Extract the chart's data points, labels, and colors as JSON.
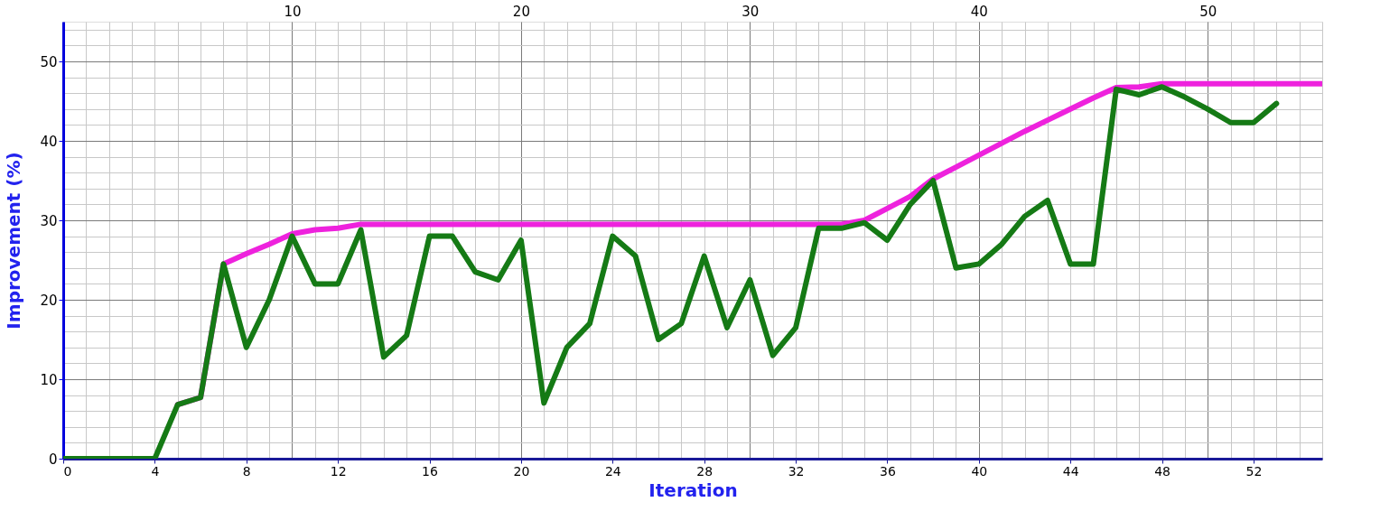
{
  "chart_data": {
    "type": "line",
    "xlabel": "Iteration",
    "ylabel": "Improvement (%)",
    "xlim": [
      0,
      55
    ],
    "ylim": [
      0,
      55
    ],
    "xticks": [
      0,
      4,
      8,
      12,
      16,
      20,
      24,
      28,
      32,
      36,
      40,
      44,
      48,
      52
    ],
    "x2lim": [
      0,
      55
    ],
    "x2ticks": [
      10,
      20,
      30,
      40,
      50
    ],
    "yticks": [
      0,
      10,
      20,
      30,
      40,
      50
    ],
    "grid": true,
    "marker": "none",
    "line_style": "solid",
    "series": [
      {
        "color": "#ee22dd",
        "x": [
          5,
          6,
          7,
          8,
          9,
          10,
          11,
          12,
          13,
          34,
          35,
          36,
          37,
          38,
          39,
          40,
          41,
          42,
          43,
          44,
          45,
          46,
          47,
          48,
          55
        ],
        "values": [
          6.8,
          7.7,
          24.5,
          25.8,
          27,
          28.3,
          28.8,
          29,
          29.5,
          29.5,
          30,
          31.5,
          33,
          35.2,
          36.7,
          38.2,
          39.7,
          41.2,
          42.6,
          44,
          45.4,
          46.7,
          46.8,
          47.2,
          47.2
        ]
      },
      {
        "color": "#157a15",
        "x": [
          0,
          1,
          2,
          3,
          4,
          5,
          6,
          7,
          8,
          9,
          10,
          11,
          12,
          13,
          14,
          15,
          16,
          17,
          18,
          19,
          20,
          21,
          22,
          23,
          24,
          25,
          26,
          27,
          28,
          29,
          30,
          31,
          32,
          33,
          34,
          35,
          36,
          37,
          38,
          39,
          40,
          41,
          42,
          43,
          44,
          45,
          46,
          47,
          48,
          49,
          50,
          51,
          52,
          53
        ],
        "values": [
          0,
          0,
          0,
          0,
          0,
          6.8,
          7.7,
          24.5,
          14,
          20,
          28,
          22,
          22,
          28.8,
          12.8,
          15.5,
          28,
          28,
          23.5,
          22.5,
          27.5,
          7,
          14,
          17,
          28,
          25.5,
          15,
          17,
          25.5,
          16.5,
          22.5,
          13,
          16.5,
          29,
          29,
          29.7,
          27.5,
          32,
          35,
          24,
          24.5,
          27,
          30.5,
          32.5,
          24.5,
          24.5,
          46.5,
          45.8,
          46.8,
          45.5,
          44,
          42.3,
          42.3,
          44.7
        ]
      }
    ]
  }
}
